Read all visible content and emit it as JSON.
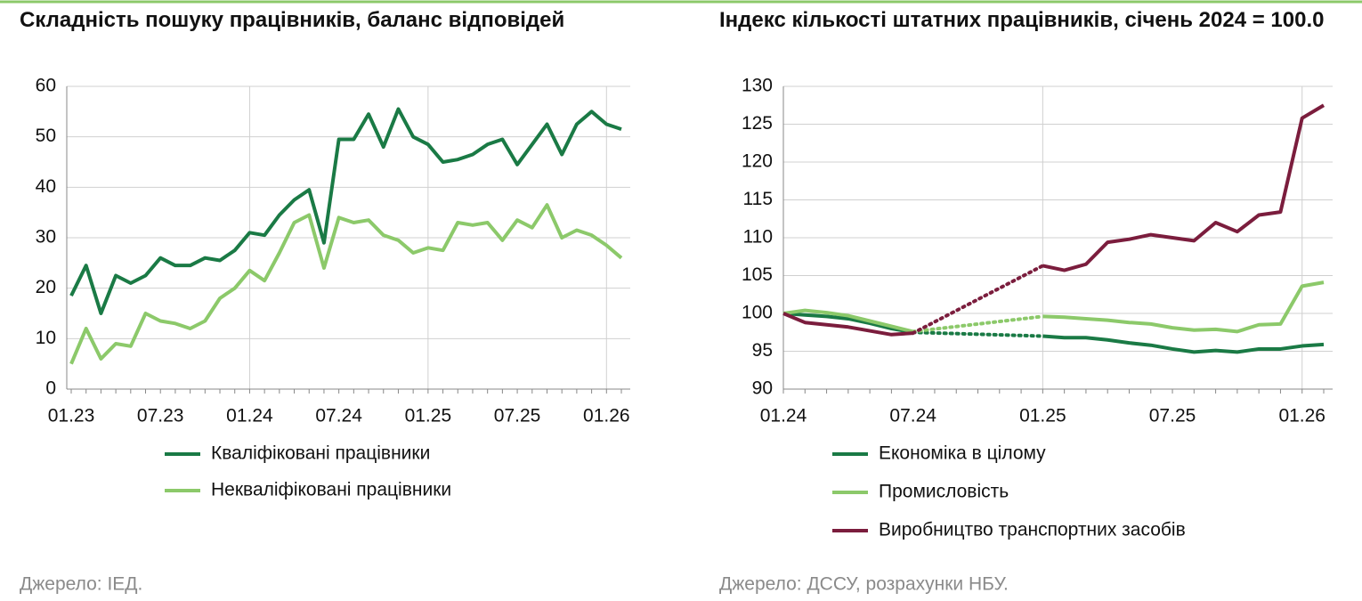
{
  "chart_data": [
    {
      "type": "line",
      "title": "Складність пошуку працівників, баланс відповідей",
      "categories": [
        "01.23",
        null,
        null,
        null,
        null,
        null,
        "07.23",
        null,
        null,
        null,
        null,
        null,
        "01.24",
        null,
        null,
        null,
        null,
        null,
        "07.24",
        null,
        null,
        null,
        null,
        null,
        "01.25",
        null,
        null,
        null,
        null,
        null,
        "07.25",
        null,
        null,
        null,
        null,
        null,
        "01.26",
        null
      ],
      "series": [
        {
          "name": "Кваліфіковані працівники",
          "color": "#1a7a45",
          "values": [
            18.5,
            24.5,
            15,
            22.5,
            21,
            22.5,
            26,
            24.5,
            24.5,
            26,
            25.5,
            27.5,
            31,
            30.5,
            34.5,
            37.5,
            39.5,
            29,
            49.5,
            49.5,
            54.5,
            48,
            55.5,
            50,
            48.5,
            45,
            45.5,
            46.5,
            48.5,
            49.5,
            44.5,
            48.5,
            52.5,
            46.5,
            52.5,
            55,
            52.5,
            51.5
          ]
        },
        {
          "name": "Некваліфіковані працівники",
          "color": "#8cc96a",
          "values": [
            5,
            12,
            6,
            9,
            8.5,
            15,
            13.5,
            13,
            12,
            13.5,
            18,
            20,
            23.5,
            21.5,
            27,
            33,
            34.5,
            24,
            34,
            33,
            33.5,
            30.5,
            29.5,
            27,
            28,
            27.5,
            33,
            32.5,
            33,
            29.5,
            33.5,
            32,
            36.5,
            30,
            31.5,
            30.5,
            28.5,
            26
          ]
        }
      ],
      "ylim": [
        0,
        60
      ],
      "yticks": [
        0,
        10,
        20,
        30,
        40,
        50,
        60
      ],
      "grid": true,
      "source": "Джерело: ІЕД."
    },
    {
      "type": "line",
      "title": "Індекс кількості штатних працівників, січень 2024 = 100.0",
      "categories": [
        "01.24",
        null,
        null,
        null,
        null,
        null,
        "07.24",
        null,
        null,
        null,
        null,
        null,
        "01.25",
        null,
        null,
        null,
        null,
        null,
        "07.25",
        null,
        null,
        null,
        null,
        null,
        "01.26",
        null
      ],
      "series": [
        {
          "name": "Економіка в цілому",
          "color": "#1a7a45",
          "values": [
            100,
            99.8,
            99.6,
            99.3,
            98.7,
            98.0,
            97.5,
            null,
            null,
            null,
            null,
            null,
            97.0,
            96.8,
            96.8,
            96.5,
            96.1,
            95.8,
            95.3,
            94.9,
            95.1,
            94.9,
            95.3,
            95.3,
            95.7,
            95.9
          ]
        },
        {
          "name": "Промисловість",
          "color": "#8cc96a",
          "values": [
            100,
            100.4,
            100.1,
            99.7,
            99.0,
            98.3,
            97.6,
            null,
            null,
            null,
            null,
            null,
            99.6,
            99.5,
            99.3,
            99.1,
            98.8,
            98.6,
            98.1,
            97.8,
            97.9,
            97.6,
            98.5,
            98.6,
            103.6,
            104.1
          ]
        },
        {
          "name": "Виробництво транспортних засобів",
          "color": "#7b1d3d",
          "values": [
            100,
            98.8,
            98.5,
            98.2,
            97.7,
            97.2,
            97.4,
            null,
            null,
            null,
            null,
            null,
            106.3,
            105.7,
            106.5,
            109.4,
            109.8,
            110.4,
            110.0,
            109.6,
            112.0,
            110.8,
            113.0,
            113.4,
            125.8,
            127.5
          ]
        }
      ],
      "ylim": [
        90,
        130
      ],
      "yticks": [
        90,
        95,
        100,
        105,
        110,
        115,
        120,
        125,
        130
      ],
      "grid": true,
      "source": "Джерело: ДССУ, розрахунки НБУ."
    }
  ]
}
